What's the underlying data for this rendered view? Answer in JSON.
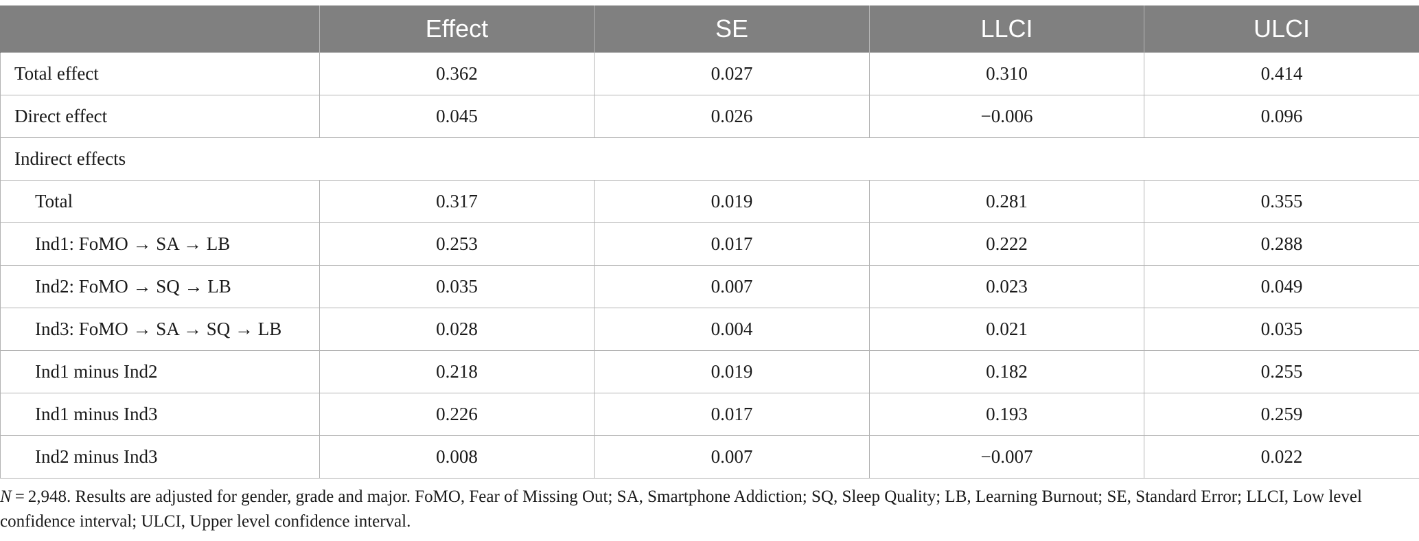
{
  "header": {
    "col0": "",
    "col1": "Effect",
    "col2": "SE",
    "col3": "LLCI",
    "col4": "ULCI"
  },
  "rows": [
    {
      "label": "Total effect",
      "effect": "0.362",
      "se": "0.027",
      "llci": "0.310",
      "ulci": "0.414"
    },
    {
      "label": "Direct effect",
      "effect": "0.045",
      "se": "0.026",
      "llci": "−0.006",
      "ulci": "0.096"
    }
  ],
  "section": {
    "label": "Indirect effects"
  },
  "subrows": [
    {
      "label": "Total",
      "effect": "0.317",
      "se": "0.019",
      "llci": "0.281",
      "ulci": "0.355"
    },
    {
      "label": "Ind1: FoMO → SA → LB",
      "effect": "0.253",
      "se": "0.017",
      "llci": "0.222",
      "ulci": "0.288"
    },
    {
      "label": "Ind2: FoMO → SQ → LB",
      "effect": "0.035",
      "se": "0.007",
      "llci": "0.023",
      "ulci": "0.049"
    },
    {
      "label": "Ind3: FoMO → SA → SQ → LB",
      "effect": "0.028",
      "se": "0.004",
      "llci": "0.021",
      "ulci": "0.035"
    },
    {
      "label": "Ind1 minus Ind2",
      "effect": "0.218",
      "se": "0.019",
      "llci": "0.182",
      "ulci": "0.255"
    },
    {
      "label": "Ind1 minus Ind3",
      "effect": "0.226",
      "se": "0.017",
      "llci": "0.193",
      "ulci": "0.259"
    },
    {
      "label": "Ind2 minus Ind3",
      "effect": "0.008",
      "se": "0.007",
      "llci": "−0.007",
      "ulci": "0.022"
    }
  ],
  "note": {
    "n_symbol": "N",
    "text": " = 2,948. Results are adjusted for gender, grade and major. FoMO, Fear of Missing Out; SA, Smartphone Addiction; SQ, Sleep Quality; LB, Learning Burnout; SE, Standard Error; LLCI, Low level confidence interval; ULCI, Upper level confidence interval."
  },
  "colors": {
    "header_bg": "#808080",
    "header_text": "#ffffff",
    "grid": "#b3b3b3"
  }
}
